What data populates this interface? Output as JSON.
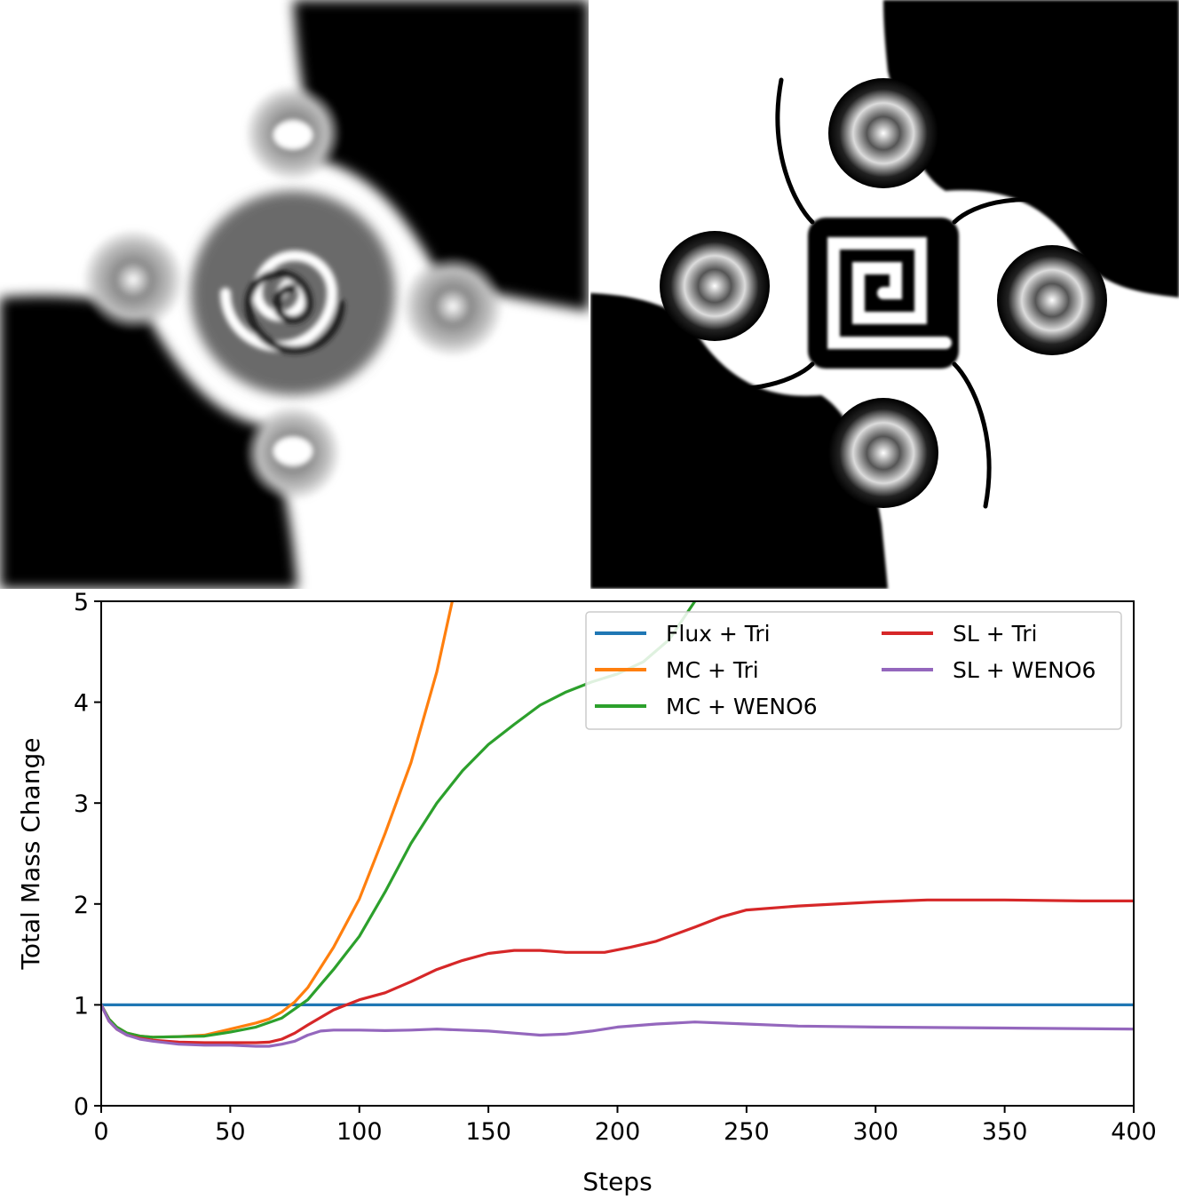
{
  "figure": {
    "left_panel": "simulation-result-blurred",
    "right_panel": "simulation-result-sharp"
  },
  "chart_data": {
    "type": "line",
    "xlabel": "Steps",
    "ylabel": "Total Mass Change",
    "xlim": [
      0,
      400
    ],
    "ylim": [
      0,
      5
    ],
    "xticks": [
      "0",
      "50",
      "100",
      "150",
      "200",
      "250",
      "300",
      "350",
      "400"
    ],
    "yticks": [
      "0",
      "1",
      "2",
      "3",
      "4",
      "5"
    ],
    "grid": false,
    "legend": {
      "placement": "top-right",
      "columns": 2
    },
    "series": [
      {
        "name": "Flux + Tri",
        "color": "#1f77b4",
        "x": [
          0,
          400
        ],
        "y": [
          1.0,
          1.0
        ]
      },
      {
        "name": "MC + Tri",
        "color": "#ff7f0e",
        "x": [
          0,
          3,
          6,
          10,
          15,
          20,
          30,
          40,
          50,
          60,
          65,
          70,
          75,
          80,
          90,
          100,
          110,
          120,
          130,
          136
        ],
        "y": [
          1.0,
          0.86,
          0.78,
          0.72,
          0.69,
          0.68,
          0.685,
          0.7,
          0.76,
          0.82,
          0.86,
          0.93,
          1.03,
          1.17,
          1.57,
          2.05,
          2.7,
          3.4,
          4.3,
          5.0
        ]
      },
      {
        "name": "MC + WENO6",
        "color": "#2ca02c",
        "x": [
          0,
          3,
          6,
          10,
          15,
          20,
          30,
          40,
          50,
          60,
          70,
          80,
          90,
          100,
          110,
          120,
          130,
          140,
          150,
          160,
          170,
          180,
          190,
          200,
          210,
          220,
          230
        ],
        "y": [
          1.0,
          0.86,
          0.78,
          0.72,
          0.69,
          0.68,
          0.685,
          0.69,
          0.73,
          0.78,
          0.87,
          1.05,
          1.35,
          1.68,
          2.12,
          2.6,
          3.0,
          3.32,
          3.58,
          3.78,
          3.97,
          4.1,
          4.2,
          4.28,
          4.4,
          4.62,
          5.0
        ]
      },
      {
        "name": "SL + Tri",
        "color": "#d62728",
        "x": [
          0,
          3,
          6,
          10,
          15,
          20,
          30,
          40,
          50,
          60,
          65,
          70,
          75,
          80,
          90,
          100,
          110,
          120,
          130,
          140,
          150,
          160,
          170,
          180,
          195,
          205,
          215,
          230,
          240,
          250,
          270,
          300,
          320,
          350,
          380,
          400
        ],
        "y": [
          1.0,
          0.84,
          0.76,
          0.7,
          0.67,
          0.65,
          0.63,
          0.625,
          0.625,
          0.625,
          0.63,
          0.66,
          0.72,
          0.8,
          0.95,
          1.05,
          1.12,
          1.23,
          1.35,
          1.44,
          1.51,
          1.54,
          1.54,
          1.52,
          1.52,
          1.57,
          1.63,
          1.77,
          1.87,
          1.94,
          1.98,
          2.02,
          2.04,
          2.04,
          2.03,
          2.03
        ]
      },
      {
        "name": "SL + WENO6",
        "color": "#9467bd",
        "x": [
          0,
          3,
          6,
          10,
          15,
          20,
          30,
          40,
          50,
          60,
          65,
          70,
          75,
          80,
          85,
          90,
          100,
          110,
          120,
          130,
          140,
          150,
          160,
          170,
          180,
          190,
          200,
          215,
          230,
          250,
          270,
          300,
          350,
          400
        ],
        "y": [
          1.0,
          0.84,
          0.76,
          0.7,
          0.66,
          0.64,
          0.61,
          0.6,
          0.6,
          0.59,
          0.59,
          0.61,
          0.64,
          0.7,
          0.74,
          0.75,
          0.75,
          0.745,
          0.75,
          0.76,
          0.75,
          0.74,
          0.72,
          0.7,
          0.71,
          0.74,
          0.78,
          0.81,
          0.83,
          0.81,
          0.79,
          0.78,
          0.77,
          0.76
        ]
      }
    ]
  }
}
